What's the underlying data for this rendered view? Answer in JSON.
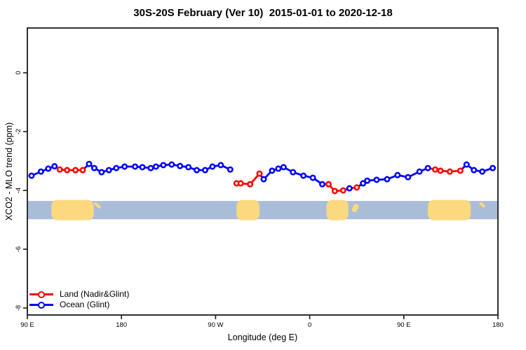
{
  "title": "30S-20S February (Ver 10)  2015-01-01 to 2020-12-18",
  "legend": {
    "items": [
      {
        "label": "Land (Nadir&Glint)",
        "series": "land"
      },
      {
        "label": "Ocean (Glint)",
        "series": "ocean"
      }
    ]
  },
  "chart_data": {
    "type": "line",
    "title": "30S-20S February (Ver 10)  2015-01-01 to 2020-12-18",
    "xlabel": "Longitude (deg E)",
    "ylabel": "XCO2 - MLO trend (ppm)",
    "x_axis_note": "longitude unwrapped eastward from 90E to 540 (=180E after full wrap)",
    "xlim_unwrapped_deg": [
      90,
      540
    ],
    "ylim": [
      -8.2,
      1.5
    ],
    "grid": false,
    "legend_position": "bottom-left",
    "x_ticks": [
      {
        "lon": 90,
        "label": "90 E"
      },
      {
        "lon": 180,
        "label": "180"
      },
      {
        "lon": 270,
        "label": "90 W"
      },
      {
        "lon": 360,
        "label": "0"
      },
      {
        "lon": 450,
        "label": "90 E"
      },
      {
        "lon": 540,
        "label": "180"
      }
    ],
    "y_ticks": [
      {
        "v": 0,
        "label": "0"
      },
      {
        "v": -2,
        "label": "-2"
      },
      {
        "v": -4,
        "label": "-4"
      },
      {
        "v": -6,
        "label": "-6"
      },
      {
        "v": -8,
        "label": "-8"
      }
    ],
    "colors": {
      "land": "#ff0000",
      "ocean": "#0000ff",
      "axis": "#1a1a1a"
    },
    "map_strip": {
      "comment": "ocean/land strip showing 30S-20S geography under the data",
      "val_top": -4.36,
      "val_bottom": -4.98,
      "ocean_color": "#a9bdd9",
      "land_color": "#fcd97e",
      "land_patches": [
        {
          "name": "australia",
          "lon0": 113,
          "lon1": 153.5,
          "style": "full"
        },
        {
          "name": "island-east-aus",
          "lon0": 155,
          "lon1": 160,
          "style": "thin"
        },
        {
          "name": "south-america",
          "lon0": 290,
          "lon1": 312,
          "style": "full"
        },
        {
          "name": "southern-africa",
          "lon0": 376,
          "lon1": 397,
          "style": "full"
        },
        {
          "name": "madagascar",
          "lon0": 403,
          "lon1": 408,
          "style": "mid"
        },
        {
          "name": "australia-wrap",
          "lon0": 473,
          "lon1": 514,
          "style": "full"
        },
        {
          "name": "island-wrap",
          "lon0": 523.5,
          "lon1": 527,
          "style": "thin"
        }
      ]
    },
    "points": [
      {
        "lon": 94,
        "val": -3.5,
        "src": "ocean"
      },
      {
        "lon": 103,
        "val": -3.36,
        "src": "ocean"
      },
      {
        "lon": 110,
        "val": -3.26,
        "src": "ocean"
      },
      {
        "lon": 116,
        "val": -3.18,
        "src": "ocean"
      },
      {
        "lon": 121,
        "val": -3.29,
        "src": "land"
      },
      {
        "lon": 128,
        "val": -3.31,
        "src": "land"
      },
      {
        "lon": 136,
        "val": -3.31,
        "src": "land"
      },
      {
        "lon": 143,
        "val": -3.31,
        "src": "land"
      },
      {
        "lon": 149,
        "val": -3.1,
        "src": "ocean"
      },
      {
        "lon": 154,
        "val": -3.24,
        "src": "ocean"
      },
      {
        "lon": 161,
        "val": -3.38,
        "src": "ocean"
      },
      {
        "lon": 168,
        "val": -3.31,
        "src": "ocean"
      },
      {
        "lon": 175,
        "val": -3.24,
        "src": "ocean"
      },
      {
        "lon": 183,
        "val": -3.19,
        "src": "ocean"
      },
      {
        "lon": 193,
        "val": -3.19,
        "src": "ocean"
      },
      {
        "lon": 200,
        "val": -3.21,
        "src": "ocean"
      },
      {
        "lon": 208,
        "val": -3.24,
        "src": "ocean"
      },
      {
        "lon": 213,
        "val": -3.19,
        "src": "ocean"
      },
      {
        "lon": 220,
        "val": -3.14,
        "src": "ocean"
      },
      {
        "lon": 228,
        "val": -3.12,
        "src": "ocean"
      },
      {
        "lon": 236,
        "val": -3.17,
        "src": "ocean"
      },
      {
        "lon": 244,
        "val": -3.21,
        "src": "ocean"
      },
      {
        "lon": 252,
        "val": -3.31,
        "src": "ocean"
      },
      {
        "lon": 260,
        "val": -3.31,
        "src": "ocean"
      },
      {
        "lon": 267,
        "val": -3.19,
        "src": "ocean"
      },
      {
        "lon": 275,
        "val": -3.14,
        "src": "ocean"
      },
      {
        "lon": 284,
        "val": -3.29,
        "src": "ocean"
      },
      {
        "lon": 290,
        "val": -3.76,
        "src": "land",
        "gap_before": true
      },
      {
        "lon": 294,
        "val": -3.76,
        "src": "land"
      },
      {
        "lon": 303,
        "val": -3.79,
        "src": "land"
      },
      {
        "lon": 312,
        "val": -3.43,
        "src": "land"
      },
      {
        "lon": 316,
        "val": -3.62,
        "src": "ocean"
      },
      {
        "lon": 324,
        "val": -3.33,
        "src": "ocean"
      },
      {
        "lon": 330,
        "val": -3.26,
        "src": "ocean"
      },
      {
        "lon": 335,
        "val": -3.21,
        "src": "ocean"
      },
      {
        "lon": 344,
        "val": -3.38,
        "src": "ocean"
      },
      {
        "lon": 354,
        "val": -3.5,
        "src": "ocean"
      },
      {
        "lon": 363,
        "val": -3.57,
        "src": "ocean"
      },
      {
        "lon": 372,
        "val": -3.79,
        "src": "ocean"
      },
      {
        "lon": 378,
        "val": -3.79,
        "src": "land"
      },
      {
        "lon": 384,
        "val": -4.02,
        "src": "land"
      },
      {
        "lon": 392,
        "val": -4.0,
        "src": "land"
      },
      {
        "lon": 398,
        "val": -3.93,
        "src": "ocean"
      },
      {
        "lon": 405,
        "val": -3.9,
        "src": "land"
      },
      {
        "lon": 411,
        "val": -3.76,
        "src": "ocean"
      },
      {
        "lon": 415,
        "val": -3.67,
        "src": "ocean"
      },
      {
        "lon": 424,
        "val": -3.64,
        "src": "ocean"
      },
      {
        "lon": 434,
        "val": -3.62,
        "src": "ocean"
      },
      {
        "lon": 444,
        "val": -3.48,
        "src": "ocean"
      },
      {
        "lon": 454,
        "val": -3.55,
        "src": "ocean"
      },
      {
        "lon": 465,
        "val": -3.36,
        "src": "ocean"
      },
      {
        "lon": 473,
        "val": -3.24,
        "src": "ocean"
      },
      {
        "lon": 480,
        "val": -3.29,
        "src": "land"
      },
      {
        "lon": 485,
        "val": -3.33,
        "src": "land"
      },
      {
        "lon": 494,
        "val": -3.36,
        "src": "land"
      },
      {
        "lon": 504,
        "val": -3.33,
        "src": "land"
      },
      {
        "lon": 510,
        "val": -3.12,
        "src": "ocean"
      },
      {
        "lon": 517,
        "val": -3.31,
        "src": "ocean"
      },
      {
        "lon": 525,
        "val": -3.36,
        "src": "ocean"
      },
      {
        "lon": 535,
        "val": -3.24,
        "src": "ocean"
      }
    ]
  }
}
